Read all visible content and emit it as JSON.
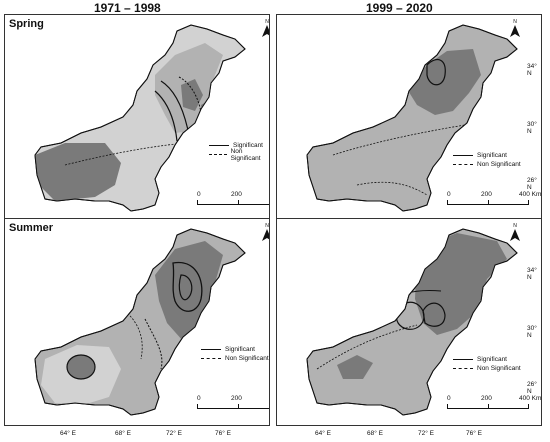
{
  "columns": {
    "left": "1971 – 1998",
    "right": "1999 – 2020"
  },
  "seasons": {
    "top": "Spring",
    "bottom": "Summer"
  },
  "legend": {
    "significant": "Significant",
    "non_significant": "Non Significant"
  },
  "scale": {
    "t0": "0",
    "t1": "200",
    "t2": "400 Km"
  },
  "north": "N",
  "lat_ticks": [
    "34° N",
    "30° N",
    "26° N"
  ],
  "lon_ticks": [
    "64° E",
    "68° E",
    "72° E",
    "76° E"
  ],
  "colors": {
    "dark_gray": "#7a7a7a",
    "mid_gray": "#b2b2b2",
    "light_gray": "#d2d2d2"
  }
}
